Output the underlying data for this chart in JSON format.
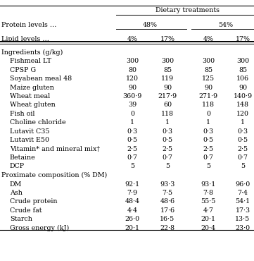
{
  "title": "Dietary treatments",
  "protein_label": "Protein levels …",
  "lipid_label": "Lipid levels …",
  "protein_groups": [
    "48%",
    "54%"
  ],
  "lipid_groups": [
    "4%",
    "17%",
    "4%",
    "17%"
  ],
  "section1_header": "Ingredients (g/kg)",
  "section1_rows": [
    [
      "Fishmeal LT",
      "300",
      "300",
      "300",
      "300"
    ],
    [
      "CPSP G",
      "80",
      "85",
      "85",
      "85"
    ],
    [
      "Soyabean meal 48",
      "120",
      "119",
      "125",
      "106"
    ],
    [
      "Maize gluten",
      "90",
      "90",
      "90",
      "90"
    ],
    [
      "Wheat meal",
      "360·9",
      "217·9",
      "271·9",
      "140·9"
    ],
    [
      "Wheat gluten",
      "39",
      "60",
      "118",
      "148"
    ],
    [
      "Fish oil",
      "0",
      "118",
      "0",
      "120"
    ],
    [
      "Choline chloride",
      "1",
      "1",
      "1",
      "1"
    ],
    [
      "Lutavit C35",
      "0·3",
      "0·3",
      "0·3",
      "0·3"
    ],
    [
      "Lutavit E50",
      "0·5",
      "0·5",
      "0·5",
      "0·5"
    ],
    [
      "Vitamin* and mineral mix†",
      "2·5",
      "2·5",
      "2·5",
      "2·5"
    ],
    [
      "Betaine",
      "0·7",
      "0·7",
      "0·7",
      "0·7"
    ],
    [
      "DCP",
      "5",
      "5",
      "5",
      "5"
    ]
  ],
  "section2_header": "Proximate composition (% DM)",
  "section2_rows": [
    [
      "DM",
      "92·1",
      "93·3",
      "93·1",
      "96·0"
    ],
    [
      "Ash",
      "7·9",
      "7·5",
      "7·8",
      "7·4"
    ],
    [
      "Crude protein",
      "48·4",
      "48·6",
      "55·5",
      "54·1"
    ],
    [
      "Crude fat",
      "4·4",
      "17·6",
      "4·7",
      "17·3"
    ],
    [
      "Starch",
      "26·0",
      "16·5",
      "20·1",
      "13·5"
    ],
    [
      "Gross energy (kJ)",
      "20·1",
      "22·8",
      "20·4",
      "23·0"
    ]
  ],
  "bg_color": "#ffffff",
  "text_color": "#000000",
  "font_size": 6.8
}
